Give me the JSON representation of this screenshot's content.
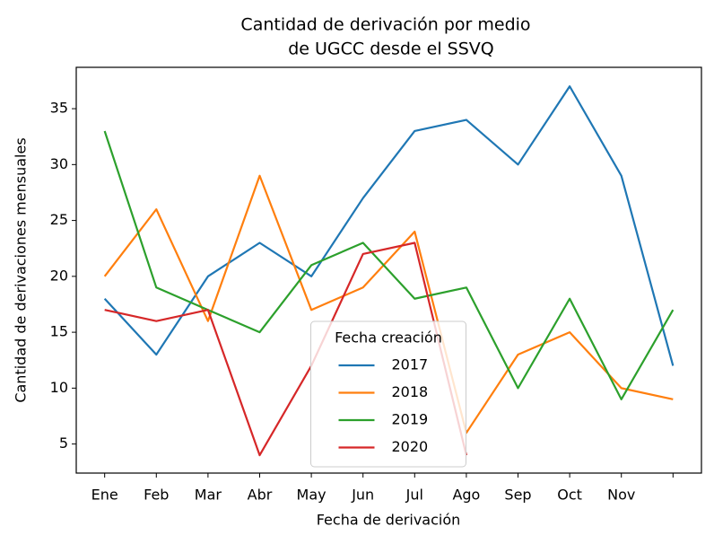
{
  "chart_data": {
    "type": "line",
    "title": [
      "Cantidad de derivación por medio",
      "de UGCC desde el SSVQ"
    ],
    "x_label": "Fecha de derivación",
    "y_label": "Cantidad de derivaciones mensuales",
    "categories": [
      "Ene",
      "Feb",
      "Mar",
      "Abr",
      "May",
      "Jun",
      "Jul",
      "Ago",
      "Sep",
      "Oct",
      "Nov",
      null
    ],
    "series": [
      {
        "name": "2017",
        "color": "#1f77b4",
        "values": [
          18,
          13,
          20,
          23,
          20,
          27,
          33,
          34,
          30,
          37,
          29,
          12
        ]
      },
      {
        "name": "2018",
        "color": "#ff7f0e",
        "values": [
          20,
          26,
          16,
          29,
          17,
          19,
          24,
          6,
          13,
          15,
          10,
          9
        ]
      },
      {
        "name": "2019",
        "color": "#2ca02c",
        "values": [
          33,
          19,
          17,
          15,
          21,
          23,
          18,
          19,
          10,
          18,
          9,
          17
        ]
      },
      {
        "name": "2020",
        "color": "#d62728",
        "values": [
          17,
          16,
          17,
          4,
          12,
          22,
          23,
          4,
          null,
          null,
          null,
          null
        ]
      }
    ],
    "legend_title": "Fecha creación",
    "legend_position": "lower center",
    "xlim": [
      -0.55,
      11.55
    ],
    "ylim": [
      2.4,
      38.7
    ],
    "yticks": [
      5,
      10,
      15,
      20,
      25,
      30,
      35
    ],
    "grid": false
  }
}
